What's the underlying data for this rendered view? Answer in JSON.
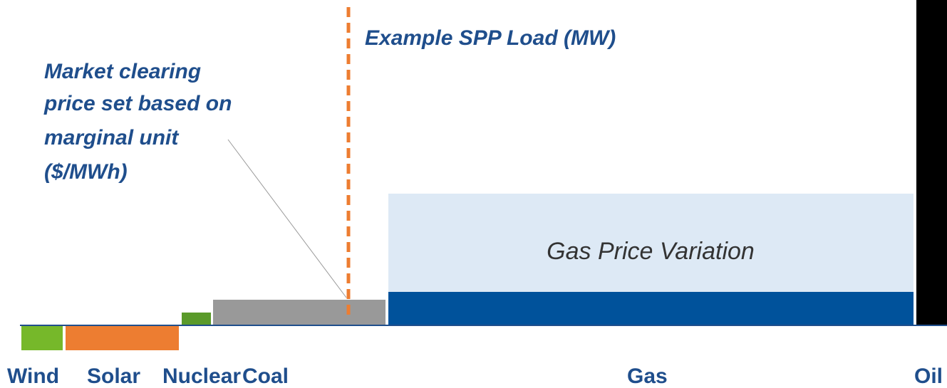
{
  "annotations": {
    "load": "Example SPP Load (MW)",
    "clearing_price": [
      "Market clearing",
      "price set based on",
      "marginal unit",
      "($/MWh)"
    ]
  },
  "gas_band": "Gas Price Variation",
  "blocks": [
    {
      "label": "Wind"
    },
    {
      "label": "Solar"
    },
    {
      "label": "Nuclear"
    },
    {
      "label": "Coal"
    },
    {
      "label": "Gas"
    },
    {
      "label": "Oil"
    }
  ]
}
